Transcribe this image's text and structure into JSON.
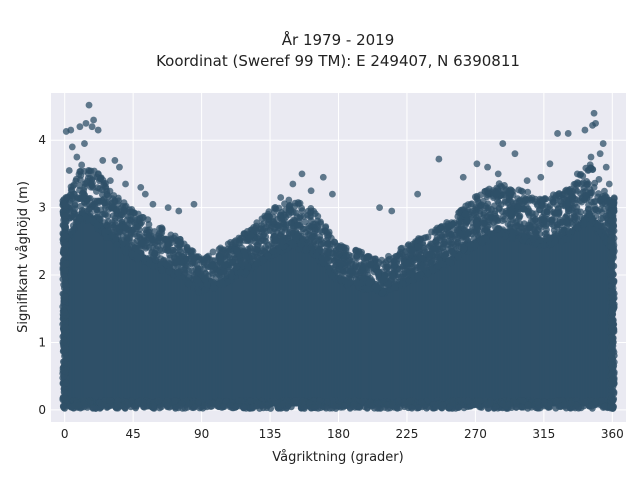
{
  "chart_data": {
    "type": "scatter",
    "title": "År 1979 - 2019",
    "subtitle": "Koordinat (Sweref 99 TM): E 249407, N 6390811",
    "xlabel": "Vågriktning (grader)",
    "ylabel": "Signifikant våghöjd (m)",
    "xlim": [
      -9,
      369
    ],
    "ylim": [
      -0.18,
      4.7
    ],
    "xticks": [
      0,
      45,
      90,
      135,
      180,
      225,
      270,
      315,
      360
    ],
    "yticks": [
      0,
      1,
      2,
      3,
      4
    ],
    "grid": true,
    "point_color": "#2f5068",
    "background": "#eaeaf2",
    "envelope": {
      "description_points_direction": [
        0,
        10,
        20,
        30,
        45,
        60,
        75,
        90,
        105,
        120,
        135,
        150,
        165,
        180,
        195,
        210,
        225,
        240,
        255,
        270,
        285,
        300,
        315,
        330,
        345,
        360
      ],
      "upper_bound_height": [
        3.0,
        3.6,
        3.5,
        3.2,
        2.9,
        2.7,
        2.5,
        2.2,
        2.4,
        2.6,
        2.9,
        3.1,
        2.9,
        2.4,
        2.3,
        2.2,
        2.4,
        2.6,
        2.8,
        3.1,
        3.3,
        3.2,
        3.1,
        3.2,
        3.6,
        3.0
      ]
    },
    "outliers": [
      {
        "x": 1,
        "y": 4.13
      },
      {
        "x": 3,
        "y": 3.55
      },
      {
        "x": 4,
        "y": 4.15
      },
      {
        "x": 5,
        "y": 3.9
      },
      {
        "x": 8,
        "y": 3.75
      },
      {
        "x": 10,
        "y": 4.2
      },
      {
        "x": 13,
        "y": 3.95
      },
      {
        "x": 14,
        "y": 4.25
      },
      {
        "x": 16,
        "y": 4.52
      },
      {
        "x": 18,
        "y": 4.2
      },
      {
        "x": 19,
        "y": 4.3
      },
      {
        "x": 22,
        "y": 4.15
      },
      {
        "x": 25,
        "y": 3.7
      },
      {
        "x": 30,
        "y": 3.4
      },
      {
        "x": 33,
        "y": 3.7
      },
      {
        "x": 36,
        "y": 3.6
      },
      {
        "x": 40,
        "y": 3.35
      },
      {
        "x": 50,
        "y": 3.3
      },
      {
        "x": 53,
        "y": 3.2
      },
      {
        "x": 58,
        "y": 3.05
      },
      {
        "x": 68,
        "y": 3.0
      },
      {
        "x": 75,
        "y": 2.95
      },
      {
        "x": 85,
        "y": 3.05
      },
      {
        "x": 142,
        "y": 3.15
      },
      {
        "x": 150,
        "y": 3.35
      },
      {
        "x": 156,
        "y": 3.5
      },
      {
        "x": 162,
        "y": 3.25
      },
      {
        "x": 170,
        "y": 3.45
      },
      {
        "x": 176,
        "y": 3.2
      },
      {
        "x": 207,
        "y": 3.0
      },
      {
        "x": 215,
        "y": 2.95
      },
      {
        "x": 232,
        "y": 3.2
      },
      {
        "x": 246,
        "y": 3.72
      },
      {
        "x": 262,
        "y": 3.45
      },
      {
        "x": 271,
        "y": 3.65
      },
      {
        "x": 278,
        "y": 3.6
      },
      {
        "x": 285,
        "y": 3.5
      },
      {
        "x": 288,
        "y": 3.95
      },
      {
        "x": 296,
        "y": 3.8
      },
      {
        "x": 304,
        "y": 3.4
      },
      {
        "x": 313,
        "y": 3.45
      },
      {
        "x": 319,
        "y": 3.65
      },
      {
        "x": 324,
        "y": 4.1
      },
      {
        "x": 331,
        "y": 4.1
      },
      {
        "x": 337,
        "y": 3.5
      },
      {
        "x": 342,
        "y": 4.15
      },
      {
        "x": 344,
        "y": 3.55
      },
      {
        "x": 346,
        "y": 3.75
      },
      {
        "x": 347,
        "y": 4.22
      },
      {
        "x": 348,
        "y": 4.4
      },
      {
        "x": 349,
        "y": 4.25
      },
      {
        "x": 352,
        "y": 3.8
      },
      {
        "x": 354,
        "y": 3.95
      },
      {
        "x": 356,
        "y": 3.6
      },
      {
        "x": 358,
        "y": 3.35
      }
    ]
  }
}
